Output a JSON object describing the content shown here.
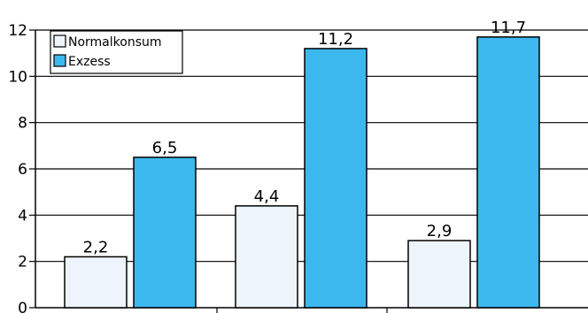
{
  "chart_data": {
    "type": "bar",
    "title": "",
    "xlabel": "",
    "ylabel": "",
    "categories": [
      "",
      "",
      ""
    ],
    "series": [
      {
        "name": "Normalkonsum",
        "color": "#eef4fb",
        "values": [
          2.2,
          4.4,
          2.9
        ],
        "labels": [
          "2,2",
          "4,4",
          "2,9"
        ]
      },
      {
        "name": "Exzess",
        "color": "#3db8ee",
        "values": [
          6.5,
          11.2,
          11.7
        ],
        "labels": [
          "6,5",
          "11,2",
          "11,7"
        ]
      }
    ],
    "ylim": [
      0,
      12
    ],
    "yticks": [
      0,
      2,
      4,
      6,
      8,
      10,
      12
    ],
    "grid": true,
    "legend_position": "top-left"
  }
}
